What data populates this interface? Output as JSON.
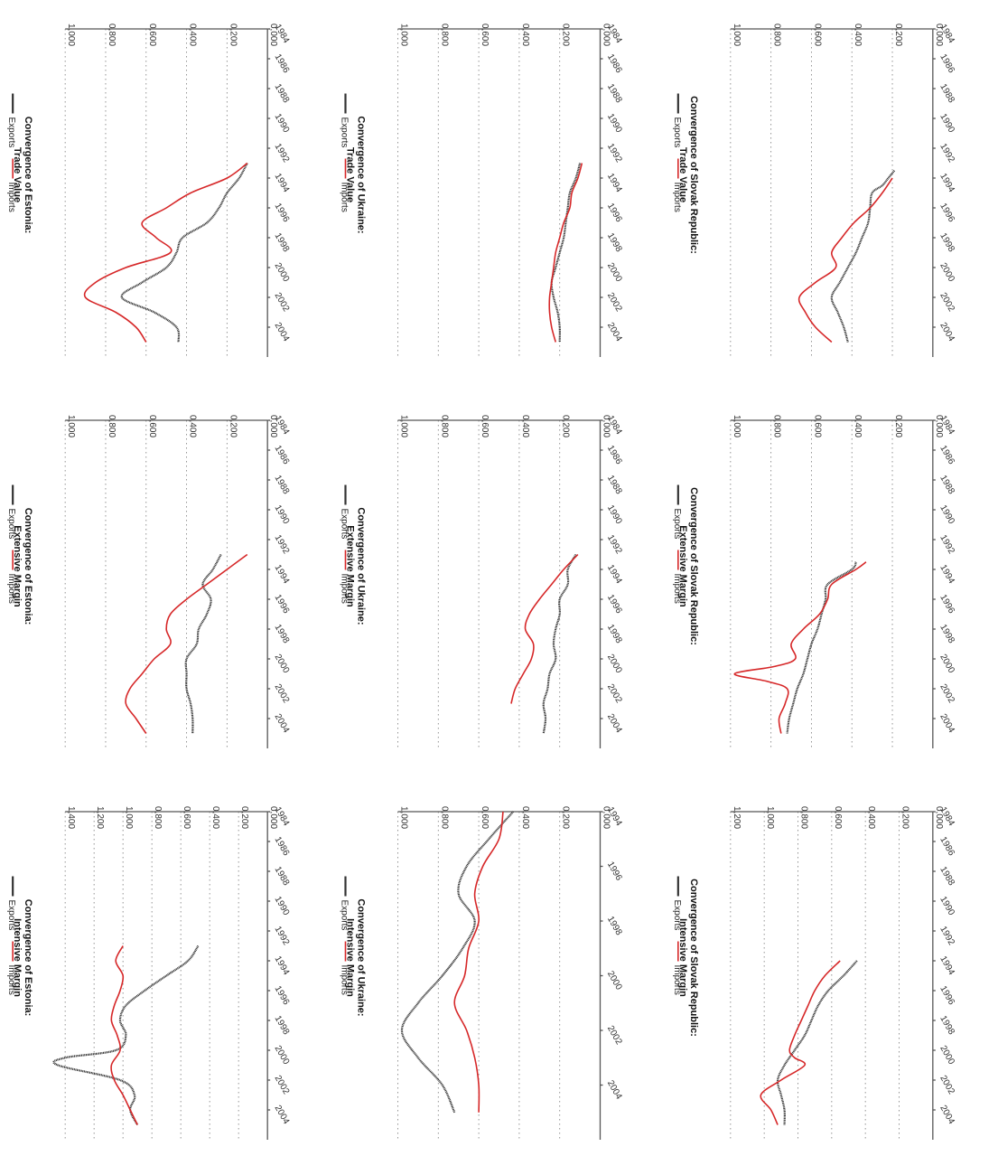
{
  "colors": {
    "exports": "#333333",
    "imports": "#d62728"
  },
  "chart_data": [
    {
      "type": "line",
      "title": "Convergence of Slovak Republic:",
      "subtitle": "Trade Value",
      "xlim": [
        1984,
        2006
      ],
      "ylim": [
        0,
        1.0
      ],
      "yticks": [
        "0,000",
        "0,200",
        "0,400",
        "0,600",
        "0,800",
        "1,000"
      ],
      "xticks": [
        "1984",
        "1986",
        "1988",
        "1990",
        "1992",
        "1994",
        "1996",
        "1998",
        "2000",
        "2002",
        "2004"
      ],
      "legend": [
        "Exports",
        "Imports"
      ],
      "series": [
        {
          "name": "Exports",
          "x": [
            1993.5,
            1994,
            1994.5,
            1995,
            1996,
            1997,
            1998,
            1999,
            2000,
            2001,
            2002,
            2003,
            2004,
            2005
          ],
          "y": [
            0.19,
            0.22,
            0.25,
            0.3,
            0.31,
            0.32,
            0.35,
            0.38,
            0.42,
            0.46,
            0.5,
            0.47,
            0.44,
            0.42
          ]
        },
        {
          "name": "Imports",
          "x": [
            1994,
            1995,
            1996,
            1997,
            1998,
            1999,
            2000,
            2001,
            2002,
            2003,
            2004,
            2005
          ],
          "y": [
            0.2,
            0.25,
            0.31,
            0.39,
            0.45,
            0.5,
            0.48,
            0.58,
            0.66,
            0.63,
            0.58,
            0.5
          ]
        }
      ]
    },
    {
      "type": "line",
      "title": "Convergence of Slovak Republic:",
      "subtitle": "Extensive Margin",
      "xlim": [
        1984,
        2006
      ],
      "ylim": [
        0,
        1.0
      ],
      "yticks": [
        "0,000",
        "0,200",
        "0,400",
        "0,600",
        "0,800",
        "1,000"
      ],
      "xticks": [
        "1984",
        "1986",
        "1988",
        "1990",
        "1992",
        "1994",
        "1996",
        "1998",
        "2000",
        "2002",
        "2004"
      ],
      "legend": [
        "Exports",
        "Imports"
      ],
      "series": [
        {
          "name": "Exports",
          "x": [
            1993.5,
            1994,
            1995,
            1996,
            1997,
            1998,
            1999,
            2000,
            2001,
            2002,
            2003,
            2004,
            2005
          ],
          "y": [
            0.38,
            0.4,
            0.52,
            0.53,
            0.55,
            0.57,
            0.6,
            0.62,
            0.64,
            0.67,
            0.69,
            0.71,
            0.72
          ]
        },
        {
          "name": "Imports",
          "x": [
            1993.5,
            1994,
            1995,
            1996,
            1997,
            1998,
            1999,
            2000,
            2000.5,
            2001,
            2001.5,
            2002,
            2003,
            2004,
            2005
          ],
          "y": [
            0.33,
            0.38,
            0.5,
            0.52,
            0.56,
            0.64,
            0.7,
            0.68,
            0.78,
            0.98,
            0.82,
            0.72,
            0.73,
            0.76,
            0.75
          ]
        }
      ]
    },
    {
      "type": "line",
      "title": "Convergence of Slovak Republic:",
      "subtitle": "Intensive Margin",
      "xlim": [
        1984,
        2006
      ],
      "ylim": [
        0,
        1.2
      ],
      "yticks": [
        "0,000",
        "0,200",
        "0,400",
        "0,600",
        "0,800",
        "1,000",
        "1,200"
      ],
      "xticks": [
        "1984",
        "1986",
        "1988",
        "1990",
        "1992",
        "1994",
        "1996",
        "1998",
        "2000",
        "2002",
        "2004"
      ],
      "legend": [
        "Exports",
        "Imports"
      ],
      "series": [
        {
          "name": "Exports",
          "x": [
            1994,
            1995,
            1996,
            1997,
            1998,
            1999,
            2000,
            2001,
            2002,
            2003,
            2004,
            2005
          ],
          "y": [
            0.45,
            0.53,
            0.62,
            0.68,
            0.72,
            0.76,
            0.82,
            0.88,
            0.92,
            0.9,
            0.88,
            0.88
          ]
        },
        {
          "name": "Imports",
          "x": [
            1994,
            1995,
            1996,
            1997,
            1998,
            1999,
            2000,
            2000.5,
            2001,
            2002,
            2003,
            2004,
            2005
          ],
          "y": [
            0.55,
            0.64,
            0.7,
            0.74,
            0.78,
            0.82,
            0.85,
            0.82,
            0.76,
            0.9,
            1.02,
            0.96,
            0.92
          ]
        }
      ]
    },
    {
      "type": "line",
      "title": "Convergence of Ukraine:",
      "subtitle": "Trade Value",
      "xlim": [
        1984,
        2006
      ],
      "ylim": [
        0,
        1.0
      ],
      "yticks": [
        "0,000",
        "0,200",
        "0,400",
        "0,600",
        "0,800",
        "1,000"
      ],
      "xticks": [
        "1984",
        "1986",
        "1988",
        "1990",
        "1992",
        "1994",
        "1996",
        "1998",
        "2000",
        "2002",
        "2004"
      ],
      "legend": [
        "Exports",
        "Imports"
      ],
      "series": [
        {
          "name": "Exports",
          "x": [
            1993,
            1994,
            1995,
            1996,
            1997,
            1998,
            1999,
            2000,
            2001,
            2002,
            2003,
            2004,
            2005
          ],
          "y": [
            0.1,
            0.12,
            0.15,
            0.16,
            0.17,
            0.18,
            0.2,
            0.22,
            0.24,
            0.23,
            0.21,
            0.2,
            0.2
          ]
        },
        {
          "name": "Imports",
          "x": [
            1993,
            1994,
            1995,
            1996,
            1997,
            1998,
            1999,
            2000,
            2001,
            2002,
            2003,
            2004,
            2005
          ],
          "y": [
            0.09,
            0.11,
            0.14,
            0.15,
            0.18,
            0.2,
            0.22,
            0.23,
            0.24,
            0.25,
            0.25,
            0.24,
            0.22
          ]
        }
      ]
    },
    {
      "type": "line",
      "title": "Convergence of Ukraine:",
      "subtitle": "Extensive Margin",
      "xlim": [
        1984,
        2006
      ],
      "ylim": [
        0,
        1.0
      ],
      "yticks": [
        "0,000",
        "0,200",
        "0,400",
        "0,600",
        "0,800",
        "1,000"
      ],
      "xticks": [
        "1984",
        "1986",
        "1988",
        "1990",
        "1992",
        "1994",
        "1996",
        "1998",
        "2000",
        "2002",
        "2004"
      ],
      "legend": [
        "Exports",
        "Imports"
      ],
      "series": [
        {
          "name": "Exports",
          "x": [
            1993,
            1994,
            1995,
            1996,
            1997,
            1998,
            1999,
            2000,
            2001,
            2002,
            2003,
            2004,
            2005
          ],
          "y": [
            0.12,
            0.16,
            0.16,
            0.2,
            0.2,
            0.22,
            0.23,
            0.22,
            0.25,
            0.26,
            0.28,
            0.27,
            0.28
          ]
        },
        {
          "name": "Imports",
          "x": [
            1993,
            1994,
            1995,
            1996,
            1997,
            1998,
            1999,
            2000,
            2001,
            2002,
            2003
          ],
          "y": [
            0.11,
            0.18,
            0.24,
            0.3,
            0.35,
            0.37,
            0.33,
            0.34,
            0.38,
            0.42,
            0.44
          ]
        }
      ]
    },
    {
      "type": "line",
      "title": "Convergence of Ukraine:",
      "subtitle": "Intensive Margin",
      "xlim": [
        1994,
        2006
      ],
      "ylim": [
        0,
        1.0
      ],
      "yticks": [
        "0,000",
        "0,200",
        "0,400",
        "0,600",
        "0,800",
        "1,000"
      ],
      "xticks": [
        "1994",
        "1996",
        "1998",
        "2000",
        "2002",
        "2004"
      ],
      "legend": [
        "Exports",
        "Imports"
      ],
      "series": [
        {
          "name": "Exports",
          "x": [
            1994,
            1995,
            1996,
            1997,
            1998,
            1999,
            2000,
            2001,
            2002,
            2003,
            2004,
            2005
          ],
          "y": [
            0.43,
            0.55,
            0.66,
            0.7,
            0.62,
            0.68,
            0.78,
            0.9,
            0.98,
            0.9,
            0.78,
            0.72
          ]
        },
        {
          "name": "Imports",
          "x": [
            1994,
            1995,
            1996,
            1997,
            1998,
            1999,
            2000,
            2001,
            2002,
            2003,
            2004,
            2005
          ],
          "y": [
            0.48,
            0.5,
            0.58,
            0.62,
            0.6,
            0.65,
            0.67,
            0.72,
            0.66,
            0.62,
            0.6,
            0.6
          ]
        }
      ]
    },
    {
      "type": "line",
      "title": "Convergence of Estonia:",
      "subtitle": "Trade Value",
      "xlim": [
        1984,
        2006
      ],
      "ylim": [
        0,
        1.0
      ],
      "yticks": [
        "0,000",
        "0,200",
        "0,400",
        "0,600",
        "0,800",
        "1,000"
      ],
      "xticks": [
        "1984",
        "1986",
        "1988",
        "1990",
        "1992",
        "1994",
        "1996",
        "1998",
        "2000",
        "2002",
        "2004"
      ],
      "legend": [
        "Exports",
        "Imports"
      ],
      "series": [
        {
          "name": "Exports",
          "x": [
            1993,
            1994,
            1995,
            1996,
            1997,
            1998,
            1999,
            2000,
            2001,
            2002,
            2003,
            2004,
            2005
          ],
          "y": [
            0.1,
            0.14,
            0.2,
            0.24,
            0.3,
            0.42,
            0.45,
            0.5,
            0.62,
            0.72,
            0.56,
            0.45,
            0.44
          ]
        },
        {
          "name": "Imports",
          "x": [
            1993,
            1994,
            1995,
            1996,
            1997,
            1998,
            1999,
            2000,
            2001,
            2002,
            2003,
            2004,
            2005
          ],
          "y": [
            0.1,
            0.2,
            0.38,
            0.5,
            0.62,
            0.55,
            0.48,
            0.7,
            0.85,
            0.9,
            0.75,
            0.65,
            0.6
          ]
        }
      ]
    },
    {
      "type": "line",
      "title": "Convergence of Estonia:",
      "subtitle": "Extensive Margin",
      "xlim": [
        1984,
        2006
      ],
      "ylim": [
        0,
        1.0
      ],
      "yticks": [
        "0,000",
        "0,200",
        "0,400",
        "0,600",
        "0,800",
        "1,000"
      ],
      "xticks": [
        "1984",
        "1986",
        "1988",
        "1990",
        "1992",
        "1994",
        "1996",
        "1998",
        "2000",
        "2002",
        "2004"
      ],
      "legend": [
        "Exports",
        "Imports"
      ],
      "series": [
        {
          "name": "Exports",
          "x": [
            1993,
            1994,
            1995,
            1996,
            1997,
            1998,
            1999,
            2000,
            2001,
            2002,
            2003,
            2004,
            2005
          ],
          "y": [
            0.23,
            0.27,
            0.32,
            0.28,
            0.3,
            0.34,
            0.35,
            0.4,
            0.4,
            0.4,
            0.38,
            0.37,
            0.37
          ]
        },
        {
          "name": "Imports",
          "x": [
            1993,
            1994,
            1995,
            1996,
            1997,
            1998,
            1999,
            2000,
            2001,
            2002,
            2003,
            2004,
            2005
          ],
          "y": [
            0.1,
            0.2,
            0.3,
            0.4,
            0.48,
            0.5,
            0.48,
            0.56,
            0.62,
            0.68,
            0.7,
            0.65,
            0.6
          ]
        }
      ]
    },
    {
      "type": "line",
      "title": "Convergence of Estonia:",
      "subtitle": "Intensive Margin",
      "xlim": [
        1984,
        2006
      ],
      "ylim": [
        0,
        1.4
      ],
      "yticks": [
        "0,000",
        "0,200",
        "0,400",
        "0,600",
        "0,800",
        "1,000",
        "1,200",
        "1,400"
      ],
      "xticks": [
        "1984",
        "1986",
        "1988",
        "1990",
        "1992",
        "1994",
        "1996",
        "1998",
        "2000",
        "2002",
        "2004"
      ],
      "legend": [
        "Exports",
        "Imports"
      ],
      "series": [
        {
          "name": "Exports",
          "x": [
            1993,
            1994,
            1995,
            1996,
            1997,
            1998,
            1999,
            2000,
            2000.5,
            2001,
            2002,
            2003,
            2004,
            2005
          ],
          "y": [
            0.48,
            0.55,
            0.7,
            0.85,
            0.98,
            1.02,
            0.98,
            1.05,
            1.4,
            1.45,
            1.02,
            0.92,
            0.95,
            0.9
          ]
        },
        {
          "name": "Imports",
          "x": [
            1993,
            1994,
            1995,
            1996,
            1997,
            1998,
            1999,
            2000,
            2001,
            2002,
            2003,
            2004,
            2005
          ],
          "y": [
            1.0,
            1.05,
            1.0,
            1.02,
            1.06,
            1.08,
            1.04,
            1.02,
            1.08,
            1.06,
            1.0,
            0.95,
            0.9
          ]
        }
      ]
    }
  ]
}
